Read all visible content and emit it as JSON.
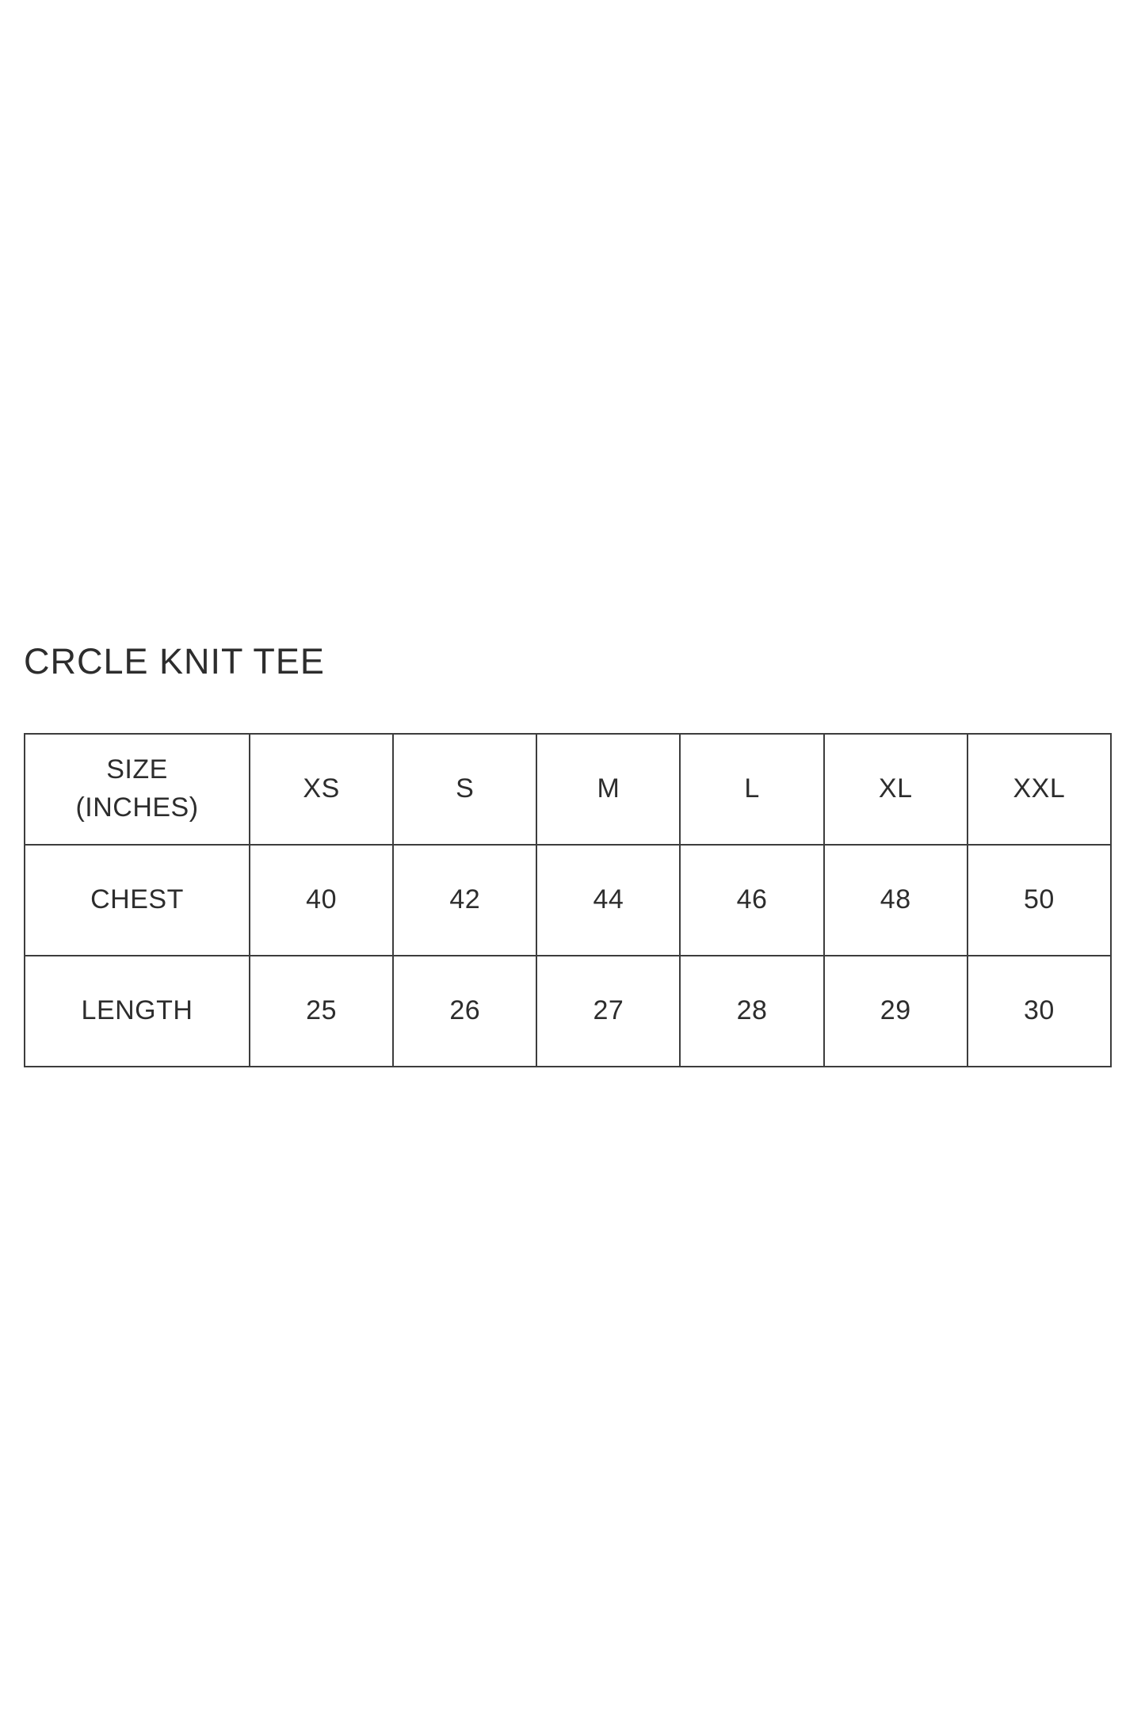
{
  "title": "CRCLE KNIT TEE",
  "size_chart": {
    "corner_header": {
      "line1": "SIZE",
      "line2": "(INCHES)"
    },
    "size_columns": [
      "XS",
      "S",
      "M",
      "L",
      "XL",
      "XXL"
    ],
    "rows": [
      {
        "label": "CHEST",
        "values": [
          "40",
          "42",
          "44",
          "46",
          "48",
          "50"
        ]
      },
      {
        "label": "LENGTH",
        "values": [
          "25",
          "26",
          "27",
          "28",
          "29",
          "30"
        ]
      }
    ]
  },
  "colors": {
    "background": "#ffffff",
    "text": "#2d2d2d",
    "border": "#3d3d3d"
  }
}
